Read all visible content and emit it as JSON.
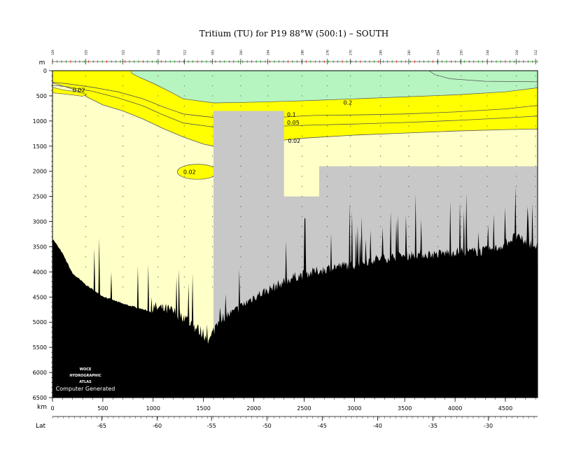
{
  "chart_data": {
    "type": "contour-section",
    "title": "Tritium (TU) for P19 88°W (500:1) – SOUTH",
    "ylabel": "m",
    "xlabel": "km",
    "lat_label": "Lat",
    "ylim": [
      0,
      6500
    ],
    "xlim": [
      0,
      4820
    ],
    "y_ticks": [
      0,
      500,
      1000,
      1500,
      2000,
      2500,
      3000,
      3500,
      4000,
      4500,
      5000,
      5500,
      6000,
      6500
    ],
    "x_ticks": [
      0,
      500,
      1000,
      1500,
      2000,
      2500,
      3000,
      3500,
      4000,
      4500
    ],
    "lat_ticks": [
      {
        "label": "-65",
        "km": 490
      },
      {
        "label": "-60",
        "km": 1040
      },
      {
        "label": "-55",
        "km": 1580
      },
      {
        "label": "-50",
        "km": 2130
      },
      {
        "label": "-45",
        "km": 2680
      },
      {
        "label": "-40",
        "km": 3230
      },
      {
        "label": "-35",
        "km": 3780
      },
      {
        "label": "-30",
        "km": 4330
      }
    ],
    "stations": [
      {
        "label": "329",
        "km": 0
      },
      {
        "label": "325",
        "km": 330
      },
      {
        "label": "322",
        "km": 700
      },
      {
        "label": "318",
        "km": 1050
      },
      {
        "label": "312",
        "km": 1310
      },
      {
        "label": "305",
        "km": 1590
      },
      {
        "label": "300",
        "km": 1870
      },
      {
        "label": "294",
        "km": 2140
      },
      {
        "label": "286",
        "km": 2480
      },
      {
        "label": "276",
        "km": 2730
      },
      {
        "label": "270",
        "km": 2960
      },
      {
        "label": "285",
        "km": 3260
      },
      {
        "label": "260",
        "km": 3540
      },
      {
        "label": "254",
        "km": 3830
      },
      {
        "label": "250",
        "km": 4060
      },
      {
        "label": "244",
        "km": 4320
      },
      {
        "label": "316",
        "km": 4610
      },
      {
        "label": "312",
        "km": 4800
      }
    ],
    "contour_levels": [
      "0.02",
      "0.05",
      "0.1",
      "0.2"
    ],
    "contour_labels": [
      {
        "text": "0.02",
        "km": 200,
        "depth": 380
      },
      {
        "text": "0.2",
        "km": 2890,
        "depth": 630
      },
      {
        "text": "0.1",
        "km": 2330,
        "depth": 870
      },
      {
        "text": "0.05",
        "km": 2330,
        "depth": 1030
      },
      {
        "text": "0.02",
        "km": 2340,
        "depth": 1390
      },
      {
        "text": "0.02",
        "km": 1300,
        "depth": 2010
      }
    ],
    "colors": {
      "high": "#b6f4c0",
      "mid": "#ffff00",
      "low": "#ffffc8",
      "nodata": "#c8c8c8",
      "seafloor": "#000000",
      "contour": "#555555"
    },
    "watermark": {
      "line1": "WOCE",
      "line2": "HYDROGRAPHIC",
      "line3": "ATLAS",
      "line4": "Computer Generated"
    }
  }
}
